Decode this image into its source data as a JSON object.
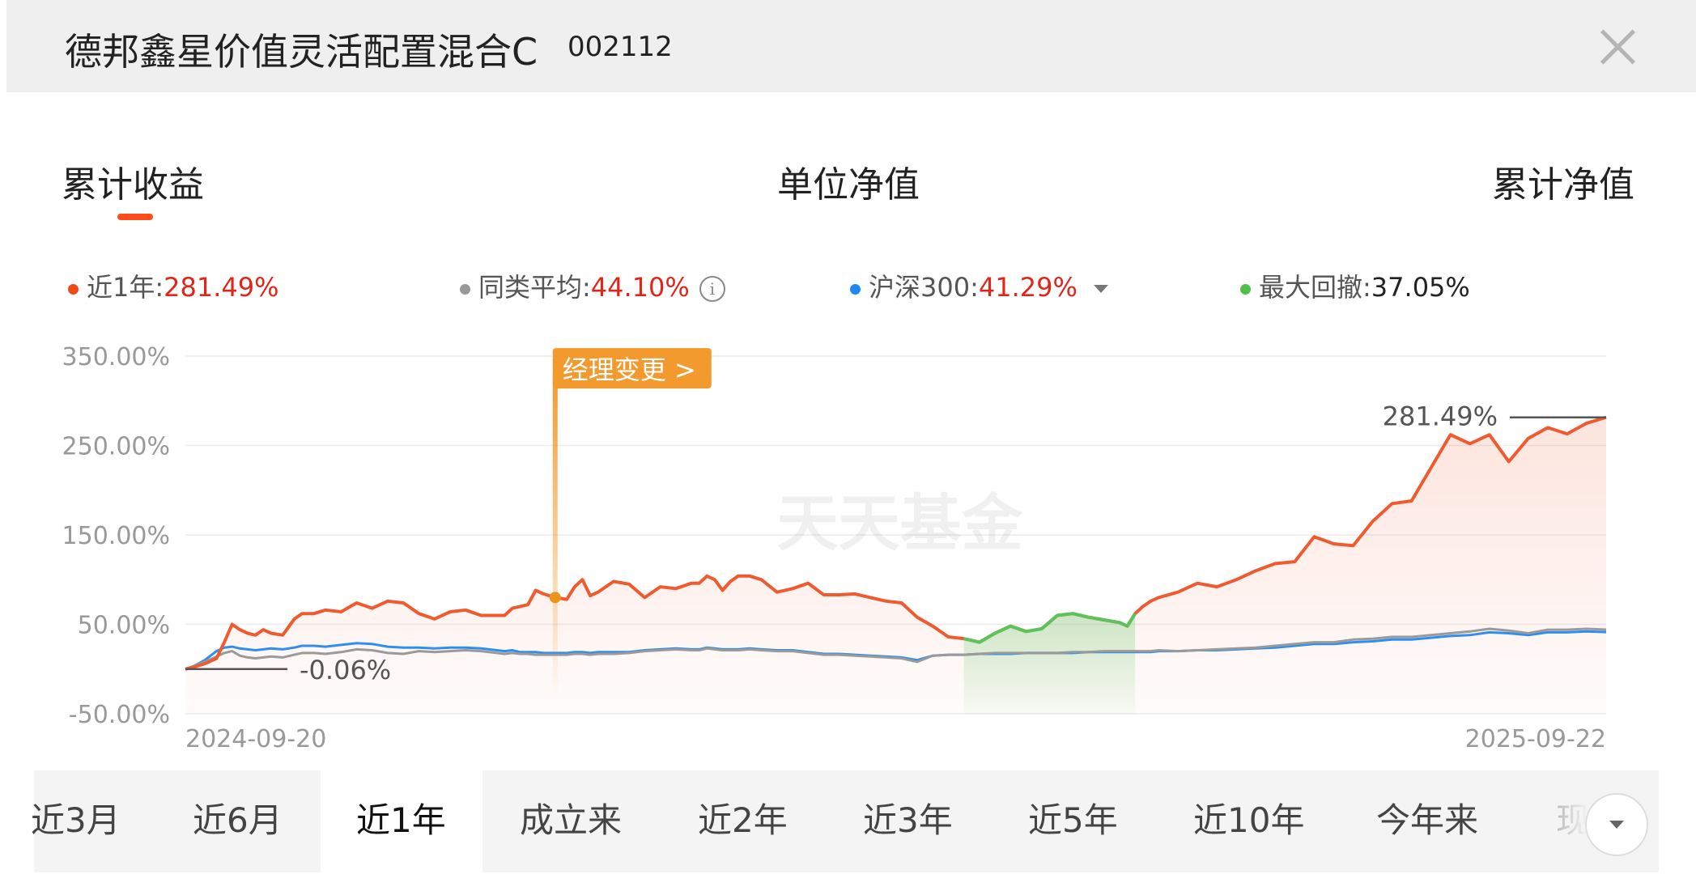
{
  "header": {
    "fund_name": "德邦鑫星价值灵活配置混合C",
    "fund_code": "002112"
  },
  "tabs": [
    "累计收益",
    "单位净值",
    "累计净值"
  ],
  "legend": {
    "fund": {
      "label": "近1年:",
      "value": "281.49%",
      "color": "#ef5a2f"
    },
    "peer": {
      "label": "同类平均:",
      "value": "44.10%",
      "color": "#9a9a9a"
    },
    "index": {
      "label": "沪深300:",
      "value": "41.29%",
      "color": "#2f8ff0"
    },
    "drawdown": {
      "label": "最大回撤:",
      "value": "37.05%",
      "color": "#5cc25b"
    }
  },
  "chart_data": {
    "type": "line",
    "x_start_label": "2024-09-20",
    "x_end_label": "2025-09-22",
    "y_ticks": [
      "350.00%",
      "250.00%",
      "150.00%",
      "50.00%",
      "-50.00%"
    ],
    "ylim": [
      -50,
      350
    ],
    "x": [
      0,
      2,
      5,
      8,
      10,
      12,
      14,
      16,
      18,
      20,
      22,
      25,
      28,
      30,
      33,
      36,
      40,
      44,
      48,
      52,
      56,
      60,
      64,
      68,
      72,
      76,
      80,
      82,
      84,
      86,
      88,
      90,
      92,
      95,
      98,
      100,
      102,
      104,
      106,
      110,
      114,
      118,
      122,
      126,
      130,
      132,
      134,
      136,
      138,
      140,
      142,
      145,
      148,
      152,
      156,
      160,
      164,
      168,
      172,
      176,
      180,
      184,
      188,
      192,
      196,
      200,
      204,
      208,
      212,
      216,
      220,
      224,
      228,
      232,
      236,
      240,
      242,
      244,
      246,
      248,
      250,
      255,
      260,
      265,
      270,
      275,
      280,
      285,
      290,
      295,
      300,
      305,
      310,
      315,
      320,
      325,
      330,
      335,
      340,
      345,
      350,
      355,
      360,
      365
    ],
    "series": [
      {
        "name": "近1年",
        "color": "#ef5a2f",
        "values": [
          0,
          2,
          6,
          12,
          30,
          50,
          44,
          40,
          38,
          44,
          40,
          38,
          56,
          62,
          62,
          66,
          64,
          74,
          68,
          76,
          74,
          62,
          56,
          64,
          66,
          60,
          60,
          60,
          68,
          70,
          72,
          88,
          84,
          80,
          78,
          92,
          100,
          82,
          86,
          98,
          95,
          80,
          92,
          90,
          96,
          96,
          104,
          100,
          88,
          98,
          104,
          104,
          100,
          86,
          90,
          96,
          83,
          83,
          84,
          80,
          76,
          74,
          58,
          48,
          36,
          34,
          30,
          40,
          48,
          42,
          45,
          60,
          62,
          58,
          55,
          52,
          48,
          62,
          70,
          76,
          80,
          86,
          96,
          92,
          100,
          110,
          118,
          120,
          148,
          140,
          138,
          165,
          185,
          188,
          225,
          262,
          252,
          262,
          232,
          258,
          270,
          263,
          275,
          281.49
        ]
      },
      {
        "name": "同类平均",
        "color": "#9a9a9a",
        "values": [
          0,
          3,
          8,
          14,
          18,
          20,
          15,
          13,
          12,
          13,
          14,
          13,
          16,
          18,
          18,
          17,
          19,
          22,
          21,
          18,
          17,
          20,
          19,
          20,
          21,
          20,
          18,
          17,
          18,
          17,
          17,
          16,
          16,
          16,
          16,
          17,
          17,
          16,
          17,
          17,
          18,
          20,
          21,
          22,
          21,
          21,
          23,
          22,
          21,
          21,
          21,
          22,
          21,
          20,
          20,
          18,
          16,
          16,
          15,
          14,
          13,
          12,
          8,
          15,
          16,
          16,
          17,
          18,
          18,
          18,
          18,
          18,
          19,
          19,
          20,
          20,
          20,
          20,
          20,
          20,
          21,
          20,
          21,
          22,
          23,
          24,
          26,
          28,
          30,
          30,
          33,
          34,
          36,
          36,
          38,
          40,
          42,
          45,
          43,
          40,
          44,
          44,
          45,
          44.1
        ]
      },
      {
        "name": "沪深300",
        "color": "#2f8ff0",
        "values": [
          0,
          3,
          10,
          20,
          24,
          25,
          23,
          22,
          21,
          22,
          23,
          22,
          24,
          26,
          26,
          25,
          27,
          29,
          28,
          25,
          24,
          24,
          23,
          24,
          24,
          23,
          21,
          20,
          21,
          19,
          19,
          19,
          18,
          18,
          18,
          19,
          19,
          18,
          19,
          19,
          19,
          21,
          22,
          23,
          22,
          22,
          24,
          23,
          22,
          22,
          22,
          23,
          22,
          21,
          21,
          19,
          17,
          17,
          16,
          15,
          14,
          13,
          10,
          15,
          16,
          16,
          17,
          17,
          17,
          18,
          18,
          18,
          18,
          19,
          19,
          19,
          19,
          19,
          19,
          19,
          20,
          20,
          21,
          21,
          22,
          23,
          24,
          26,
          28,
          28,
          30,
          31,
          33,
          33,
          35,
          37,
          38,
          41,
          40,
          38,
          41,
          41,
          42,
          41.29
        ]
      }
    ],
    "drawdown_range_x": [
      200,
      244
    ],
    "annotations": {
      "manager_change": {
        "text": "经理变更 >",
        "x": 95
      },
      "end_value_label": "281.49%",
      "start_value_label": "-0.06%"
    },
    "watermark": "天天基金"
  },
  "periods": [
    "近3月",
    "近6月",
    "近1年",
    "成立来",
    "近2年",
    "近3年",
    "近5年",
    "近10年",
    "今年来",
    "现"
  ],
  "selected_period": "近1年"
}
